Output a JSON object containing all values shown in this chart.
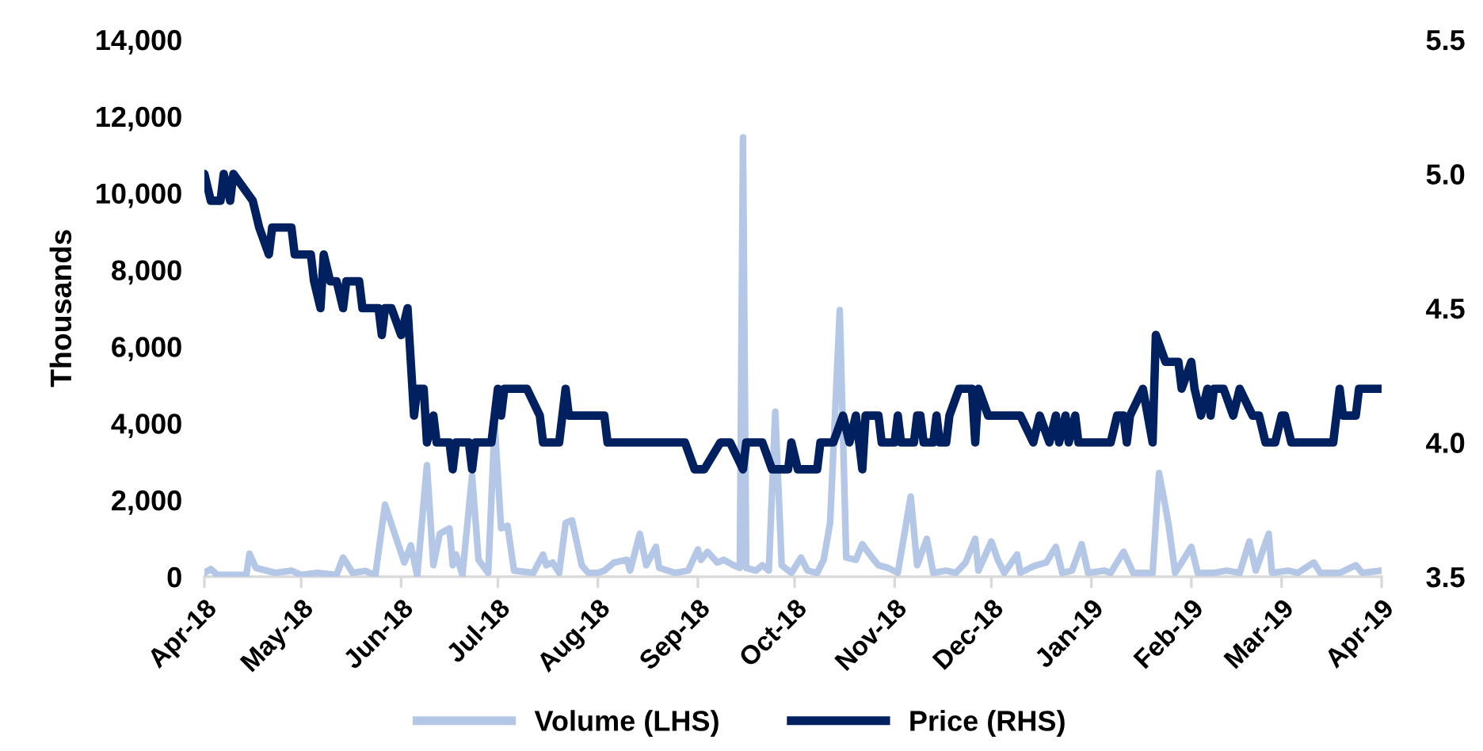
{
  "chart_data": {
    "type": "line",
    "ylabel": "Thousands",
    "legend": "bottom",
    "grid": false,
    "marker": "none",
    "line_style": "solid",
    "xlim": [
      "2018-04-01",
      "2019-04-01"
    ],
    "xticks": [
      {
        "value": "2018-04-01",
        "label": "Apr-18"
      },
      {
        "value": "2018-05-01",
        "label": "May-18"
      },
      {
        "value": "2018-06-01",
        "label": "Jun-18"
      },
      {
        "value": "2018-07-01",
        "label": "Jul-18"
      },
      {
        "value": "2018-08-01",
        "label": "Aug-18"
      },
      {
        "value": "2018-09-01",
        "label": "Sep-18"
      },
      {
        "value": "2018-10-01",
        "label": "Oct-18"
      },
      {
        "value": "2018-11-01",
        "label": "Nov-18"
      },
      {
        "value": "2018-12-01",
        "label": "Dec-18"
      },
      {
        "value": "2019-01-01",
        "label": "Jan-19"
      },
      {
        "value": "2019-02-01",
        "label": "Feb-19"
      },
      {
        "value": "2019-03-01",
        "label": "Mar-19"
      },
      {
        "value": "2019-04-01",
        "label": "Apr-19"
      }
    ],
    "ylim": [
      0,
      14000
    ],
    "yticks": [
      {
        "value": 0,
        "label": "0"
      },
      {
        "value": 2000,
        "label": "2,000"
      },
      {
        "value": 4000,
        "label": "4,000"
      },
      {
        "value": 6000,
        "label": "6,000"
      },
      {
        "value": 8000,
        "label": "8,000"
      },
      {
        "value": 10000,
        "label": "10,000"
      },
      {
        "value": 12000,
        "label": "12,000"
      },
      {
        "value": 14000,
        "label": "14,000"
      }
    ],
    "y2lim": [
      3.5,
      5.5
    ],
    "y2ticks": [
      {
        "value": 3.5,
        "label": "3.5"
      },
      {
        "value": 4.0,
        "label": "4.0"
      },
      {
        "value": 4.5,
        "label": "4.5"
      },
      {
        "value": 5.0,
        "label": "5.0"
      },
      {
        "value": 5.5,
        "label": "5.5"
      }
    ],
    "series": [
      {
        "name": "Volume (LHS)",
        "color": "#b4c7e7",
        "x": [
          "2018-04-01",
          "2018-04-03",
          "2018-04-05",
          "2018-04-14",
          "2018-04-15",
          "2018-04-17",
          "2018-04-23",
          "2018-04-28",
          "2018-05-01",
          "2018-05-06",
          "2018-05-12",
          "2018-05-14",
          "2018-05-17",
          "2018-05-21",
          "2018-05-24",
          "2018-05-27",
          "2018-05-30",
          "2018-06-02",
          "2018-06-04",
          "2018-06-06",
          "2018-06-09",
          "2018-06-11",
          "2018-06-13",
          "2018-06-16",
          "2018-06-17",
          "2018-06-18",
          "2018-06-20",
          "2018-06-23",
          "2018-06-25",
          "2018-06-28",
          "2018-06-30",
          "2018-07-02",
          "2018-07-04",
          "2018-07-06",
          "2018-07-12",
          "2018-07-15",
          "2018-07-16",
          "2018-07-18",
          "2018-07-20",
          "2018-07-22",
          "2018-07-24",
          "2018-07-27",
          "2018-07-29",
          "2018-08-01",
          "2018-08-03",
          "2018-08-06",
          "2018-08-10",
          "2018-08-11",
          "2018-08-14",
          "2018-08-16",
          "2018-08-19",
          "2018-08-20",
          "2018-08-25",
          "2018-08-29",
          "2018-09-01",
          "2018-09-02",
          "2018-09-04",
          "2018-09-07",
          "2018-09-09",
          "2018-09-12",
          "2018-09-14",
          "2018-09-15",
          "2018-09-16",
          "2018-09-19",
          "2018-09-21",
          "2018-09-23",
          "2018-09-25",
          "2018-09-27",
          "2018-09-30",
          "2018-10-03",
          "2018-10-05",
          "2018-10-08",
          "2018-10-10",
          "2018-10-12",
          "2018-10-15",
          "2018-10-17",
          "2018-10-20",
          "2018-10-22",
          "2018-10-25",
          "2018-10-27",
          "2018-10-30",
          "2018-11-02",
          "2018-11-06",
          "2018-11-08",
          "2018-11-11",
          "2018-11-13",
          "2018-11-17",
          "2018-11-20",
          "2018-11-23",
          "2018-11-26",
          "2018-11-27",
          "2018-12-01",
          "2018-12-03",
          "2018-12-05",
          "2018-12-09",
          "2018-12-10",
          "2018-12-13",
          "2018-12-15",
          "2018-12-18",
          "2018-12-21",
          "2018-12-23",
          "2018-12-26",
          "2018-12-29",
          "2018-12-31",
          "2019-01-05",
          "2019-01-07",
          "2019-01-11",
          "2019-01-14",
          "2019-01-20",
          "2019-01-22",
          "2019-01-24",
          "2019-01-25",
          "2019-01-26",
          "2019-01-27",
          "2019-02-01",
          "2019-02-03",
          "2019-02-08",
          "2019-02-12",
          "2019-02-16",
          "2019-02-19",
          "2019-02-21",
          "2019-02-25",
          "2019-02-26",
          "2019-03-03",
          "2019-03-06",
          "2019-03-11",
          "2019-03-13",
          "2019-03-19",
          "2019-03-24",
          "2019-03-26",
          "2019-04-01"
        ],
        "values": [
          100,
          200,
          50,
          50,
          600,
          230,
          100,
          160,
          50,
          100,
          50,
          500,
          100,
          150,
          30,
          1880,
          1120,
          370,
          820,
          30,
          2910,
          300,
          1120,
          1260,
          300,
          580,
          50,
          2640,
          440,
          100,
          4000,
          1260,
          1330,
          160,
          100,
          580,
          300,
          370,
          100,
          1400,
          1470,
          300,
          100,
          100,
          160,
          370,
          440,
          160,
          1120,
          300,
          780,
          230,
          100,
          160,
          710,
          440,
          650,
          370,
          440,
          300,
          230,
          11450,
          230,
          160,
          300,
          160,
          4300,
          300,
          100,
          500,
          160,
          100,
          440,
          1400,
          6950,
          500,
          440,
          850,
          500,
          300,
          230,
          100,
          2090,
          300,
          990,
          100,
          160,
          100,
          370,
          990,
          160,
          920,
          440,
          100,
          580,
          100,
          230,
          300,
          370,
          780,
          100,
          160,
          850,
          100,
          160,
          100,
          650,
          100,
          100,
          2700,
          1810,
          1330,
          710,
          100,
          780,
          100,
          100,
          160,
          100,
          920,
          160,
          1120,
          100,
          160,
          100,
          370,
          100,
          100,
          300,
          100,
          160
        ]
      },
      {
        "name": "Price (RHS)",
        "color": "#002060",
        "axis": "y2",
        "x": [
          "2018-04-01",
          "2018-04-03",
          "2018-04-06",
          "2018-04-07",
          "2018-04-09",
          "2018-04-10",
          "2018-04-16",
          "2018-04-18",
          "2018-04-21",
          "2018-04-22",
          "2018-04-28",
          "2018-04-29",
          "2018-05-04",
          "2018-05-05",
          "2018-05-07",
          "2018-05-08",
          "2018-05-10",
          "2018-05-12",
          "2018-05-14",
          "2018-05-15",
          "2018-05-19",
          "2018-05-20",
          "2018-05-25",
          "2018-05-26",
          "2018-05-27",
          "2018-05-29",
          "2018-06-01",
          "2018-06-03",
          "2018-06-04",
          "2018-06-05",
          "2018-06-06",
          "2018-06-08",
          "2018-06-09",
          "2018-06-11",
          "2018-06-12",
          "2018-06-16",
          "2018-06-17",
          "2018-06-18",
          "2018-06-22",
          "2018-06-23",
          "2018-06-24",
          "2018-06-29",
          "2018-07-01",
          "2018-07-02",
          "2018-07-03",
          "2018-07-10",
          "2018-07-14",
          "2018-07-15",
          "2018-07-20",
          "2018-07-22",
          "2018-07-23",
          "2018-08-03",
          "2018-08-04",
          "2018-08-28",
          "2018-08-31",
          "2018-09-03",
          "2018-09-08",
          "2018-09-11",
          "2018-09-15",
          "2018-09-16",
          "2018-09-21",
          "2018-09-24",
          "2018-09-29",
          "2018-09-30",
          "2018-10-02",
          "2018-10-08",
          "2018-10-09",
          "2018-10-13",
          "2018-10-16",
          "2018-10-18",
          "2018-10-20",
          "2018-10-22",
          "2018-10-23",
          "2018-10-27",
          "2018-10-28",
          "2018-11-01",
          "2018-11-02",
          "2018-11-03",
          "2018-11-07",
          "2018-11-08",
          "2018-11-09",
          "2018-11-10",
          "2018-11-13",
          "2018-11-14",
          "2018-11-15",
          "2018-11-17",
          "2018-11-18",
          "2018-11-21",
          "2018-11-25",
          "2018-11-26",
          "2018-11-27",
          "2018-11-30",
          "2018-12-10",
          "2018-12-14",
          "2018-12-16",
          "2018-12-19",
          "2018-12-21",
          "2018-12-22",
          "2018-12-24",
          "2018-12-25",
          "2018-12-27",
          "2018-12-28",
          "2019-01-07",
          "2019-01-09",
          "2019-01-11",
          "2019-01-12",
          "2019-01-13",
          "2019-01-17",
          "2019-01-20",
          "2019-01-21",
          "2019-01-24",
          "2019-01-28",
          "2019-01-29",
          "2019-02-01",
          "2019-02-02",
          "2019-02-04",
          "2019-02-06",
          "2019-02-07",
          "2019-02-08",
          "2019-02-11",
          "2019-02-14",
          "2019-02-16",
          "2019-02-20",
          "2019-02-22",
          "2019-02-24",
          "2019-02-27",
          "2019-03-01",
          "2019-03-02",
          "2019-03-04",
          "2019-03-17",
          "2019-03-19",
          "2019-03-20",
          "2019-03-24",
          "2019-03-25",
          "2019-04-01"
        ],
        "values": [
          5.0,
          4.9,
          4.9,
          5.0,
          4.9,
          5.0,
          4.9,
          4.8,
          4.7,
          4.8,
          4.8,
          4.7,
          4.7,
          4.6,
          4.5,
          4.7,
          4.6,
          4.6,
          4.5,
          4.6,
          4.6,
          4.5,
          4.5,
          4.4,
          4.5,
          4.5,
          4.4,
          4.5,
          4.3,
          4.1,
          4.2,
          4.2,
          4.0,
          4.1,
          4.0,
          4.0,
          3.9,
          4.0,
          4.0,
          3.9,
          4.0,
          4.0,
          4.2,
          4.1,
          4.2,
          4.2,
          4.1,
          4.0,
          4.0,
          4.2,
          4.1,
          4.1,
          4.0,
          4.0,
          3.9,
          3.9,
          4.0,
          4.0,
          3.9,
          4.0,
          4.0,
          3.9,
          3.9,
          4.0,
          3.9,
          3.9,
          4.0,
          4.0,
          4.1,
          4.0,
          4.1,
          3.9,
          4.1,
          4.1,
          4.0,
          4.0,
          4.1,
          4.0,
          4.0,
          4.1,
          4.1,
          4.0,
          4.0,
          4.1,
          4.0,
          4.0,
          4.1,
          4.2,
          4.2,
          4.0,
          4.2,
          4.1,
          4.1,
          4.0,
          4.1,
          4.0,
          4.1,
          4.0,
          4.1,
          4.0,
          4.1,
          4.0,
          4.0,
          4.1,
          4.1,
          4.0,
          4.1,
          4.2,
          4.0,
          4.4,
          4.3,
          4.3,
          4.2,
          4.3,
          4.2,
          4.1,
          4.2,
          4.1,
          4.2,
          4.2,
          4.1,
          4.2,
          4.1,
          4.1,
          4.0,
          4.0,
          4.1,
          4.1,
          4.0,
          4.0,
          4.2,
          4.1,
          4.1,
          4.2,
          4.2
        ]
      }
    ]
  }
}
